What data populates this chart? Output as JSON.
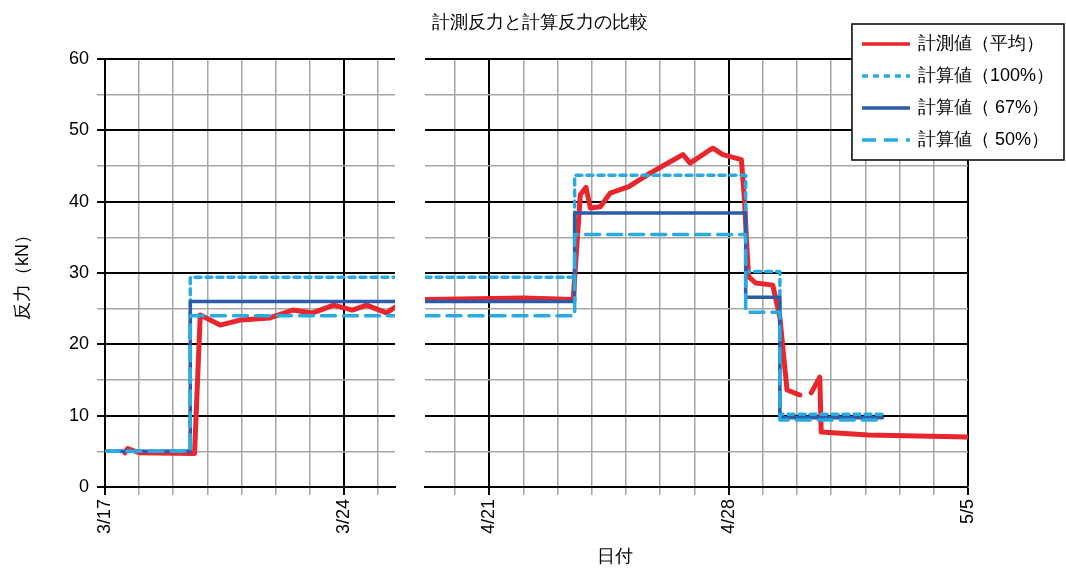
{
  "chart_data": [
    {
      "type": "line",
      "ylabel": "反力（kN）",
      "xlim": [
        "--03-17",
        "--03-25T12:00"
      ],
      "xticks": [
        {
          "value": "--03-17",
          "label": "3/17"
        },
        {
          "value": "--03-18",
          "label": null
        },
        {
          "value": "--03-19",
          "label": null
        },
        {
          "value": "--03-20",
          "label": null
        },
        {
          "value": "--03-21",
          "label": null
        },
        {
          "value": "--03-22",
          "label": null
        },
        {
          "value": "--03-23",
          "label": null
        },
        {
          "value": "--03-24",
          "label": "3/24"
        },
        {
          "value": "--03-25",
          "label": null
        }
      ],
      "ylim": [
        0,
        60
      ],
      "yticks": [
        0,
        {
          "value": 5,
          "label": null
        },
        10,
        {
          "value": 15,
          "label": null
        },
        20,
        {
          "value": 25,
          "label": null
        },
        30,
        {
          "value": 35,
          "label": null
        },
        40,
        {
          "value": 45,
          "label": null
        },
        50,
        {
          "value": 55,
          "label": null
        },
        60
      ],
      "grid": true,
      "marker": "none",
      "series": [
        {
          "color": "#e8262b",
          "line_style": "solid",
          "x": [
            "--03-17T14:00",
            "--03-17T16:00",
            "--03-18T00:00",
            "--03-19T15:00",
            "--03-19T19:00",
            "--03-20T09:00",
            "--03-20T23:00",
            "--03-21T20:00",
            "--03-22T12:00",
            "--03-23T02:00",
            "--03-23T17:00",
            "--03-24T06:00",
            "--03-24T16:00",
            "--03-25T06:00",
            "--03-25T12:00"
          ],
          "values": [
            4.8,
            5.4,
            4.8,
            4.7,
            24.1,
            22.7,
            23.4,
            23.7,
            24.8,
            24.4,
            25.5,
            24.8,
            25.5,
            24.4,
            25.2
          ]
        },
        {
          "type": "step",
          "color": "#29abe2",
          "line_style": "dotted",
          "x": [
            "--03-17",
            "--03-19T12:00",
            "--03-25T12:00"
          ],
          "values": [
            5,
            29.4,
            29.4
          ]
        },
        {
          "type": "step",
          "color": "#2e5ba8",
          "line_style": "solid",
          "x": [
            "--03-17",
            "--03-19T12:00",
            "--03-25T12:00"
          ],
          "values": [
            5,
            26,
            26
          ]
        },
        {
          "type": "step",
          "color": "#29abe2",
          "line_style": "dashed",
          "x": [
            "--03-17",
            "--03-19T12:00",
            "--03-25T12:00"
          ],
          "values": [
            5,
            24,
            24
          ]
        }
      ]
    },
    {
      "type": "line",
      "title": "計測反力と計算反力の比較",
      "xlabel": "日付",
      "xlim": [
        "--04-19T03:00",
        "--05-05"
      ],
      "tick_labels": "x",
      "legend": "top right",
      "xticks": [
        {
          "value": "--04-20",
          "label": null
        },
        {
          "value": "--04-21",
          "label": "4/21"
        },
        {
          "value": "--04-22",
          "label": null
        },
        {
          "value": "--04-23",
          "label": null
        },
        {
          "value": "--04-24",
          "label": null
        },
        {
          "value": "--04-25",
          "label": null
        },
        {
          "value": "--04-26",
          "label": null
        },
        {
          "value": "--04-27",
          "label": null
        },
        {
          "value": "--04-28",
          "label": "4/28"
        },
        {
          "value": "--04-29",
          "label": null
        },
        {
          "value": "--04-30",
          "label": null
        },
        {
          "value": "--05-01",
          "label": null
        },
        {
          "value": "--05-02",
          "label": null
        },
        {
          "value": "--05-03",
          "label": null
        },
        {
          "value": "--05-04",
          "label": null
        },
        {
          "value": "--05-05",
          "label": "5/5"
        }
      ],
      "ylim": [
        0,
        60
      ],
      "yticks": [
        0,
        {
          "value": 5,
          "label": null
        },
        10,
        {
          "value": 15,
          "label": null
        },
        20,
        {
          "value": 25,
          "label": null
        },
        30,
        {
          "value": 35,
          "label": null
        },
        40,
        {
          "value": 45,
          "label": null
        },
        50,
        {
          "value": 55,
          "label": null
        },
        60
      ],
      "grid": true,
      "marker": "none",
      "series": [
        {
          "name": "計測値（平均）",
          "color": "#e8262b",
          "line_style": "solid",
          "x": [
            "--04-19T03:00",
            "--04-22",
            "--04-23T11:00",
            "--04-23T16:00",
            "--04-23T20:00",
            "--04-23T23:00",
            "--04-24T06:00",
            "--04-24T13:00",
            "--04-25T02:00",
            "--04-25T17:00",
            "--04-26T07:00",
            "--04-26T16:00",
            "--04-26T21:00",
            "--04-27T09:00",
            "--04-27T13:00",
            "--04-27T20:00",
            "--04-28T09:00",
            "--04-28T11:00",
            "--04-28T14:00",
            "--04-28T19:00",
            "--04-29T07:00",
            "--04-29T12:00",
            "--04-29T17:00",
            "--04-30T02:00",
            "--04-30T06:00",
            "--04-30T10:00",
            "--04-30T16:00",
            "--04-30T17:00",
            "--05-02T02:00",
            "--05-05"
          ],
          "values": [
            26.3,
            26.5,
            26.3,
            41.0,
            42.0,
            39.1,
            39.3,
            41.2,
            42.1,
            44.0,
            45.6,
            46.6,
            45.4,
            47.0,
            47.5,
            46.6,
            45.9,
            40.7,
            29.5,
            28.6,
            28.3,
            23.8,
            13.6,
            12.9,
            null,
            13.2,
            15.4,
            7.7,
            7.3,
            7.0
          ]
        },
        {
          "type": "step",
          "name": "計算値（100%）",
          "color": "#29abe2",
          "line_style": "dotted",
          "x": [
            "--04-19T03:00",
            "--04-23T12:00",
            "--04-28T12:00",
            "--04-29T12:00",
            "--05-02T12:00"
          ],
          "values": [
            29.4,
            43.7,
            30.2,
            10.2,
            10.2
          ]
        },
        {
          "type": "step",
          "name": "計算値（ 67%）",
          "color": "#2e5ba8",
          "line_style": "solid",
          "x": [
            "--04-19T03:00",
            "--04-23T12:00",
            "--04-28T12:00",
            "--04-29T12:00",
            "--05-02T12:00"
          ],
          "values": [
            26,
            38.4,
            26.6,
            9.7,
            9.7
          ]
        },
        {
          "type": "step",
          "name": "計算値（ 50%）",
          "color": "#29abe2",
          "line_style": "dashed",
          "x": [
            "--04-19T03:00",
            "--04-23T12:00",
            "--04-28T12:00",
            "--04-29T12:00",
            "--05-02T12:00"
          ],
          "values": [
            24,
            35.4,
            24.5,
            9.4,
            9.4
          ]
        }
      ]
    }
  ]
}
